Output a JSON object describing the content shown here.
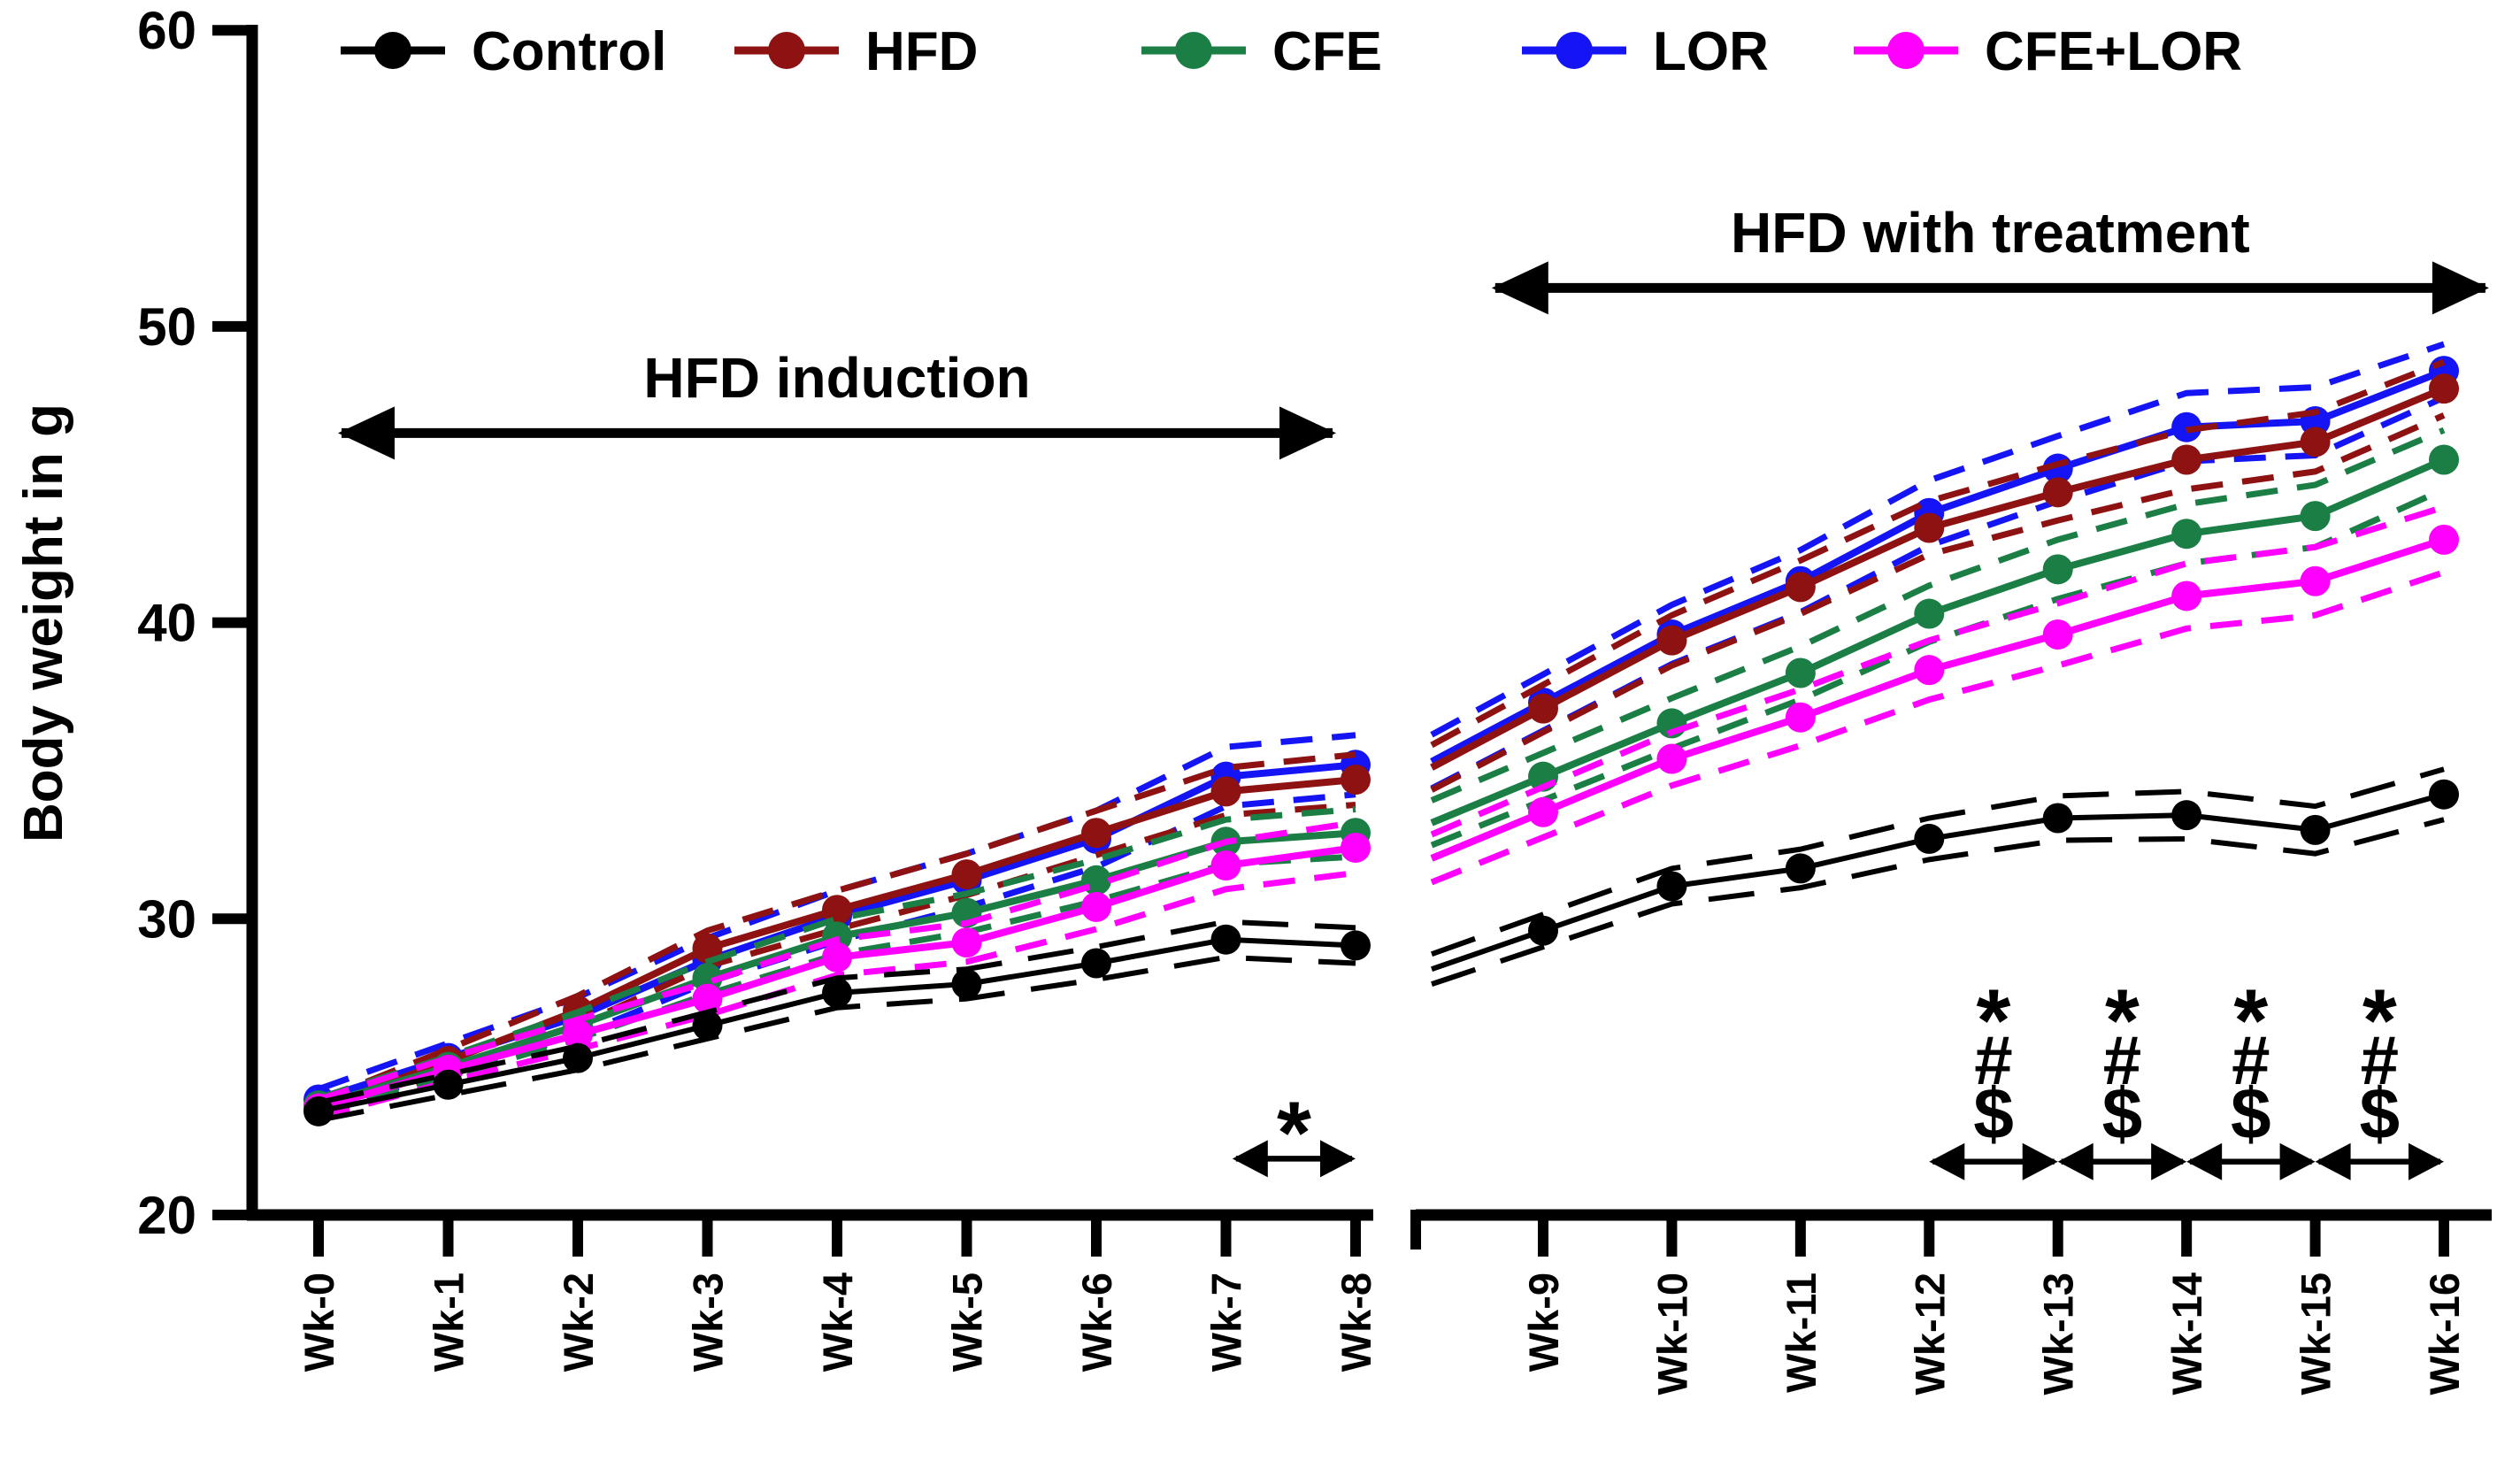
{
  "chart_data": {
    "type": "line",
    "title": "",
    "ylabel": "Body weight in g",
    "ylim": [
      20,
      60
    ],
    "yticks": [
      20,
      30,
      40,
      50,
      60
    ],
    "grid": "off",
    "legend_position": "top",
    "x_axis_break_between": [
      "Wk-8",
      "Wk-9"
    ],
    "error_band_style": "dashed mean ± SEM band above and below each solid line",
    "categories": [
      "Wk-0",
      "Wk-1",
      "Wk-2",
      "Wk-3",
      "Wk-4",
      "Wk-5",
      "Wk-6",
      "Wk-7",
      "Wk-8",
      "Wk-9",
      "Wk-10",
      "Wk-11",
      "Wk-12",
      "Wk-13",
      "Wk-14",
      "Wk-15",
      "Wk-16"
    ],
    "series": [
      {
        "name": "Control",
        "color": "#000000",
        "values": [
          23.5,
          24.4,
          25.3,
          26.4,
          27.5,
          27.8,
          28.5,
          29.3,
          29.1,
          29.6,
          31.1,
          31.7,
          32.7,
          33.4,
          33.5,
          33.0,
          34.2
        ],
        "sem": [
          0.3,
          0.35,
          0.4,
          0.45,
          0.5,
          0.5,
          0.55,
          0.6,
          0.6,
          0.55,
          0.6,
          0.65,
          0.7,
          0.75,
          0.8,
          0.8,
          0.85
        ]
      },
      {
        "name": "HFD",
        "color": "#8E1212",
        "values": [
          23.6,
          25.2,
          26.9,
          29.0,
          30.3,
          31.5,
          32.9,
          34.3,
          34.7,
          37.1,
          39.4,
          41.2,
          43.2,
          44.4,
          45.5,
          46.1,
          47.9
        ],
        "sem": [
          0.25,
          0.4,
          0.5,
          0.6,
          0.65,
          0.7,
          0.75,
          0.8,
          0.85,
          0.8,
          0.85,
          0.9,
          0.9,
          0.95,
          1.0,
          1.0,
          0.9
        ]
      },
      {
        "name": "CFE",
        "color": "#1A7E45",
        "values": [
          23.7,
          25.0,
          26.4,
          28.0,
          29.4,
          30.2,
          31.3,
          32.6,
          32.9,
          34.8,
          36.6,
          38.3,
          40.3,
          41.8,
          43.0,
          43.6,
          45.5
        ],
        "sem": [
          0.25,
          0.35,
          0.45,
          0.55,
          0.6,
          0.65,
          0.7,
          0.75,
          0.8,
          0.8,
          0.85,
          0.9,
          0.95,
          1.0,
          1.0,
          1.05,
          1.0
        ]
      },
      {
        "name": "LOR",
        "color": "#1414F5",
        "values": [
          23.9,
          25.3,
          26.7,
          28.6,
          30.1,
          31.3,
          32.7,
          34.8,
          35.2,
          37.3,
          39.6,
          41.4,
          43.7,
          45.2,
          46.6,
          46.8,
          48.5
        ],
        "sem": [
          0.35,
          0.5,
          0.65,
          0.75,
          0.85,
          0.9,
          0.95,
          1.0,
          1.0,
          0.95,
          1.0,
          1.05,
          1.1,
          1.1,
          1.15,
          1.15,
          0.9
        ]
      },
      {
        "name": "CFE+LOR",
        "color": "#FF00FF",
        "values": [
          23.6,
          24.9,
          26.1,
          27.3,
          28.7,
          29.2,
          30.4,
          31.8,
          32.4,
          33.6,
          35.4,
          36.8,
          38.4,
          39.6,
          40.9,
          41.4,
          42.8
        ],
        "sem": [
          0.3,
          0.4,
          0.5,
          0.55,
          0.6,
          0.65,
          0.75,
          0.8,
          0.85,
          0.85,
          0.9,
          0.95,
          1.0,
          1.05,
          1.1,
          1.15,
          1.1
        ]
      }
    ],
    "annotations": {
      "phase_arrows": [
        {
          "label": "HFD induction",
          "week_start": 0.15,
          "week_end": 7.85,
          "arrow_y": 46.4,
          "label_y": 47.6
        },
        {
          "label": "HFD with treatment",
          "week_start": 8.6,
          "week_end": 16.35,
          "arrow_y": 51.3,
          "label_y": 52.5
        }
      ],
      "significance_left": {
        "symbols": [
          "*"
        ],
        "symbol_y": [
          23.6
        ],
        "week_start": 7.05,
        "week_end": 8.0,
        "arrow_y": 21.9
      },
      "significance_right": {
        "symbols": [
          "*",
          "#",
          "$"
        ],
        "symbol_y": [
          27.4,
          25.5,
          23.6
        ],
        "intervals": [
          [
            12,
            13
          ],
          [
            13,
            14
          ],
          [
            14,
            15
          ],
          [
            15,
            16
          ]
        ],
        "arrow_y": 21.8
      }
    }
  }
}
